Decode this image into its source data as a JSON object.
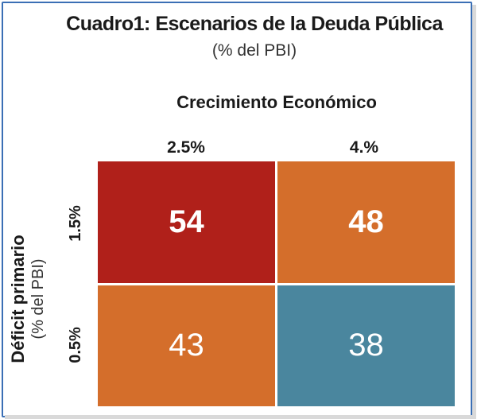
{
  "chart_data": {
    "type": "heatmap",
    "title": "Cuadro1: Escenarios de la Deuda Pública",
    "subtitle": "(% del PBI)",
    "xlabel": "Crecimiento Económico",
    "ylabel": "Déficit primario",
    "ylabel_sub": "(% del PBI)",
    "x_categories": [
      "2.5%",
      "4.%"
    ],
    "y_categories": [
      "1.5%",
      "0.5%"
    ],
    "values": [
      [
        54,
        48
      ],
      [
        43,
        38
      ]
    ],
    "cell_colors": [
      [
        "#b0201a",
        "#d46e2b"
      ],
      [
        "#d46e2b",
        "#4a869e"
      ]
    ],
    "bold_cells": [
      [
        true,
        true
      ],
      [
        false,
        false
      ]
    ]
  }
}
